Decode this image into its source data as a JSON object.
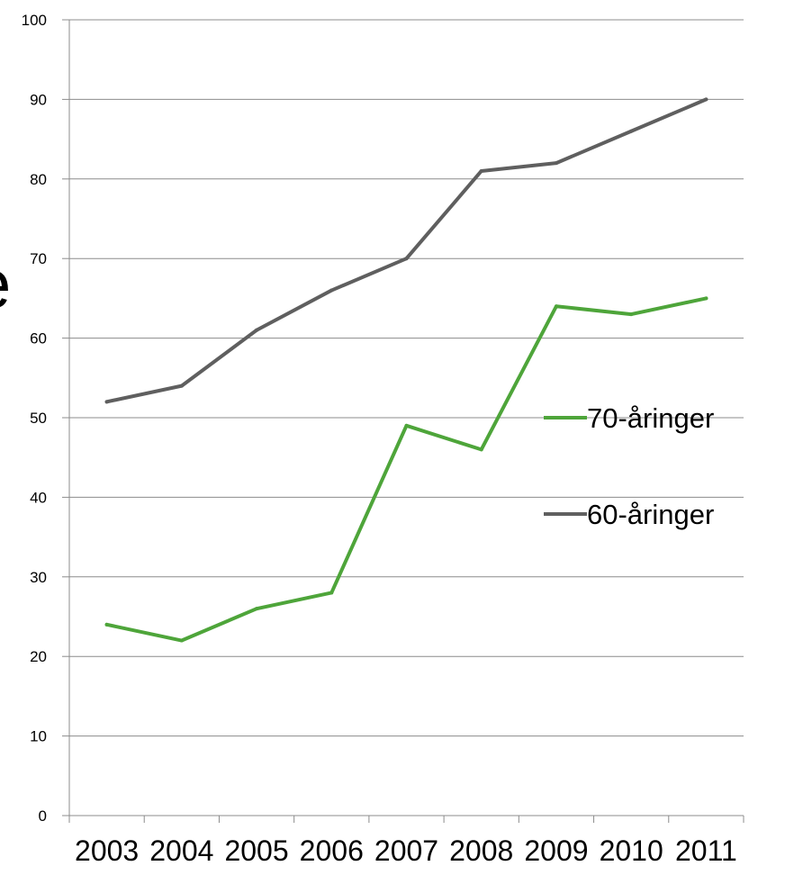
{
  "page": {
    "clipped_glyph": "e"
  },
  "chart_data": {
    "type": "line",
    "title": "",
    "xlabel": "",
    "ylabel": "",
    "categories": [
      "2003",
      "2004",
      "2005",
      "2006",
      "2007",
      "2008",
      "2009",
      "2010",
      "2011"
    ],
    "ylim": [
      0,
      100
    ],
    "yticks": [
      0,
      10,
      20,
      30,
      40,
      50,
      60,
      70,
      80,
      90,
      100
    ],
    "grid": true,
    "legend_position": "right",
    "series": [
      {
        "name": "70-åringer",
        "color": "#4ea53a",
        "values": [
          24,
          22,
          26,
          28,
          49,
          46,
          64,
          63,
          65
        ]
      },
      {
        "name": "60-åringer",
        "color": "#5f5f5f",
        "values": [
          52,
          54,
          61,
          66,
          70,
          81,
          82,
          86,
          90
        ]
      }
    ]
  }
}
